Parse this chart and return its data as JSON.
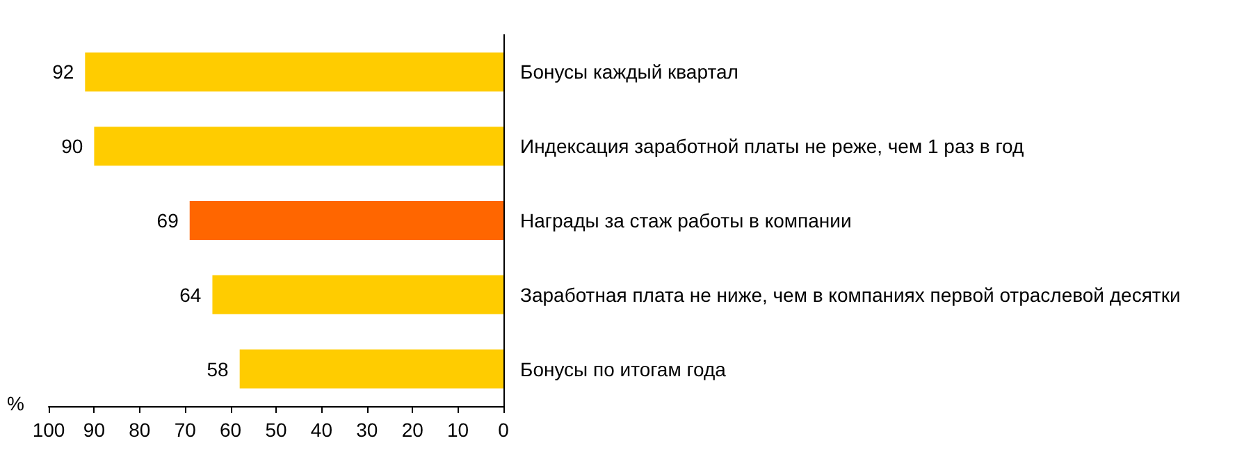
{
  "chart_data": {
    "type": "bar",
    "orientation": "horizontal",
    "categories": [
      "Бонусы каждый квартал",
      "Индексация заработной платы не реже, чем 1 раз в год",
      "Награды за стаж работы в компании",
      "Заработная плата не ниже, чем в компаниях первой отраслевой десятки",
      "Бонусы по итогам года"
    ],
    "values": [
      92,
      90,
      69,
      64,
      58
    ],
    "colors": [
      "#ffcc00",
      "#ffcc00",
      "#ff6600",
      "#ffcc00",
      "#ffcc00"
    ],
    "xlabel": "%",
    "xlim": [
      100,
      0
    ],
    "xticks": [
      100,
      90,
      80,
      70,
      60,
      50,
      40,
      30,
      20,
      10,
      0
    ],
    "data_labels": true,
    "grid": false
  }
}
